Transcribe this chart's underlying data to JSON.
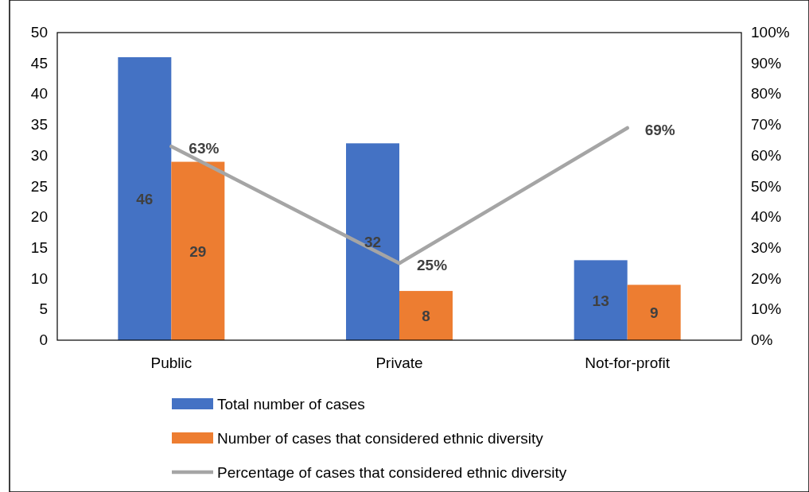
{
  "chart_data": {
    "type": "bar",
    "categories": [
      "Public",
      "Private",
      "Not-for-profit"
    ],
    "series": [
      {
        "name": "Total number of cases",
        "color": "#4472c4",
        "values": [
          46,
          32,
          13
        ],
        "value_labels": [
          "46",
          "32",
          "13"
        ]
      },
      {
        "name": "Number of cases that considered ethnic diversity",
        "color": "#ed7d31",
        "values": [
          29,
          8,
          9
        ],
        "value_labels": [
          "29",
          "8",
          "9"
        ]
      },
      {
        "name": "Percentage of cases that considered ethnic diversity",
        "type": "line",
        "axis": "y2",
        "color": "#a5a5a5",
        "values": [
          63,
          25,
          69
        ],
        "value_labels": [
          "63%",
          "25%",
          "69%"
        ]
      }
    ],
    "ylim": [
      0,
      50
    ],
    "yticks": [
      0,
      5,
      10,
      15,
      20,
      25,
      30,
      35,
      40,
      45,
      50
    ],
    "y2lim": [
      0,
      100
    ],
    "y2ticks": [
      {
        "value": 0,
        "label": "0%"
      },
      {
        "value": 10,
        "label": "10%"
      },
      {
        "value": 20,
        "label": "20%"
      },
      {
        "value": 30,
        "label": "30%"
      },
      {
        "value": 40,
        "label": "40%"
      },
      {
        "value": 50,
        "label": "50%"
      },
      {
        "value": 60,
        "label": "60%"
      },
      {
        "value": 70,
        "label": "70%"
      },
      {
        "value": 80,
        "label": "80%"
      },
      {
        "value": 90,
        "label": "90%"
      },
      {
        "value": 100,
        "label": "100%"
      }
    ],
    "legend": "bottom",
    "marker": "none",
    "line_style": "solid"
  }
}
